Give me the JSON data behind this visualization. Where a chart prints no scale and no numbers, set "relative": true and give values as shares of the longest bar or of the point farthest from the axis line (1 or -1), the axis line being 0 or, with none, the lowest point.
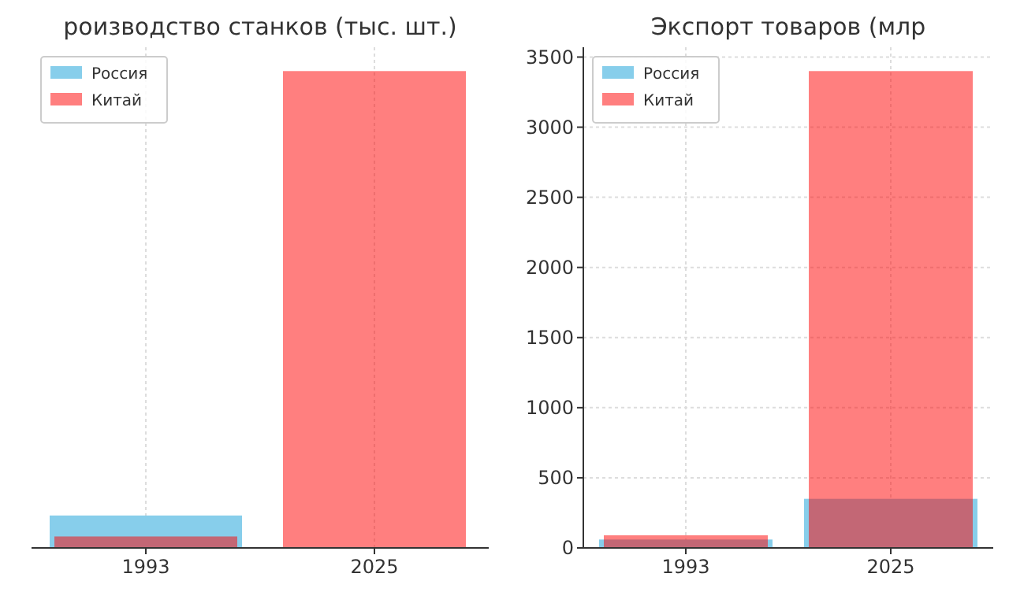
{
  "chart_data": [
    {
      "type": "bar",
      "title": "роизводство станков (тыс. шт.)",
      "categories": [
        "1993",
        "2025"
      ],
      "relative": true,
      "series": [
        {
          "name": "Россия",
          "color": "#87ceeb",
          "values": [
            0.068,
            0
          ]
        },
        {
          "name": "Китай",
          "color": "#ff0000",
          "values": [
            0.024,
            1
          ]
        }
      ],
      "grid": "x",
      "legend": "top left"
    },
    {
      "type": "bar",
      "title": "Экспорт товаров (млр",
      "categories": [
        "1993",
        "2025"
      ],
      "series": [
        {
          "name": "Россия",
          "color": "#87ceeb",
          "values": [
            60,
            350
          ]
        },
        {
          "name": "Китай",
          "color": "#ff0000",
          "values": [
            90,
            3400
          ]
        }
      ],
      "ylim": [
        0,
        3570
      ],
      "yticks": [
        0,
        500,
        1000,
        1500,
        2000,
        2500,
        3000,
        3500
      ],
      "grid": true,
      "legend": "top left"
    }
  ]
}
